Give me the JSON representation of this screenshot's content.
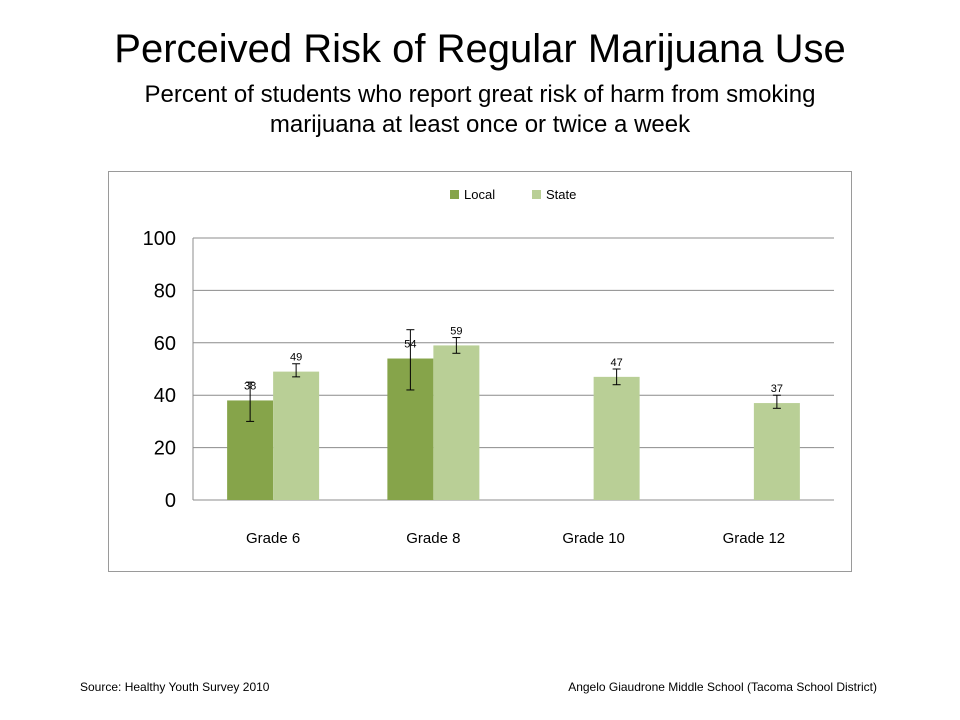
{
  "header": {
    "title": "Perceived Risk of Regular Marijuana Use",
    "subtitle": "Percent of students who report great risk of harm from smoking marijuana at least once or twice a week"
  },
  "footer": {
    "source": "Source: Healthy Youth Survey 2010",
    "school": "Angelo Giaudrone Middle School (Tacoma School District)"
  },
  "chart_data": {
    "type": "bar",
    "categories": [
      "Grade 6",
      "Grade 8",
      "Grade 10",
      "Grade 12"
    ],
    "series": [
      {
        "name": "Local",
        "color": "#86a44a",
        "values": [
          38,
          54,
          null,
          null
        ],
        "labels": [
          "38",
          "54",
          "",
          ""
        ],
        "error_low": [
          30,
          42,
          null,
          null
        ],
        "error_high": [
          45,
          65,
          null,
          null
        ]
      },
      {
        "name": "State",
        "color": "#b9cf96",
        "values": [
          49,
          59,
          47,
          37
        ],
        "labels": [
          "49",
          "59",
          "47",
          "37"
        ],
        "error_low": [
          47,
          56,
          44,
          35
        ],
        "error_high": [
          52,
          62,
          50,
          40
        ]
      }
    ],
    "ylim": [
      0,
      100
    ],
    "yticks": [
      0,
      20,
      40,
      60,
      80,
      100
    ],
    "grid": true,
    "legend_position": "top"
  }
}
